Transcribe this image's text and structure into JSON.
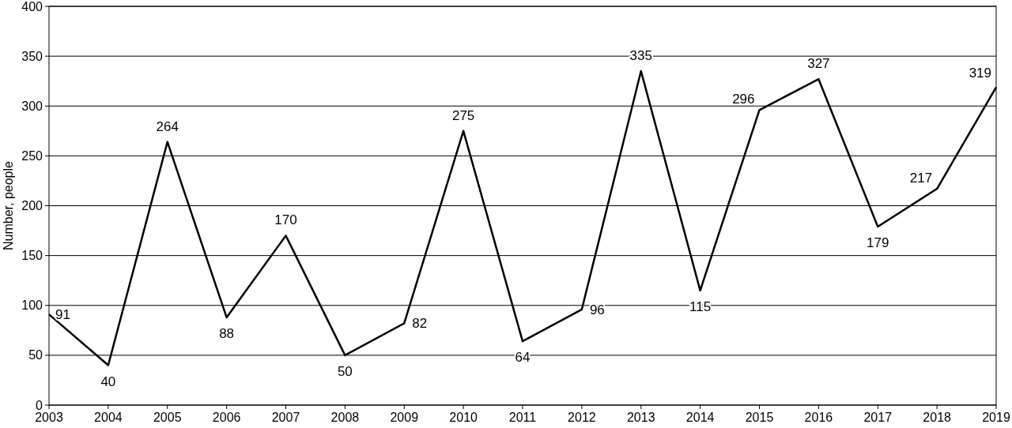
{
  "chart_data": {
    "type": "line",
    "ylabel": "Number, people",
    "x": [
      2003,
      2004,
      2005,
      2006,
      2007,
      2008,
      2009,
      2010,
      2011,
      2012,
      2013,
      2014,
      2015,
      2016,
      2017,
      2018,
      2019
    ],
    "series": [
      {
        "color": "#000000",
        "values": [
          91,
          40,
          264,
          88,
          170,
          50,
          82,
          275,
          64,
          96,
          335,
          115,
          296,
          327,
          179,
          217,
          319
        ]
      }
    ],
    "xlim": [
      2003,
      2019
    ],
    "xticks": [
      2003,
      2004,
      2005,
      2006,
      2007,
      2008,
      2009,
      2010,
      2011,
      2012,
      2013,
      2014,
      2015,
      2016,
      2017,
      2018,
      2019
    ],
    "ylim": [
      0,
      400
    ],
    "yticks": [
      0,
      50,
      100,
      150,
      200,
      250,
      300,
      350,
      400
    ],
    "grid": "y",
    "data_labels": true,
    "marker": "none",
    "line_style": "solid"
  }
}
